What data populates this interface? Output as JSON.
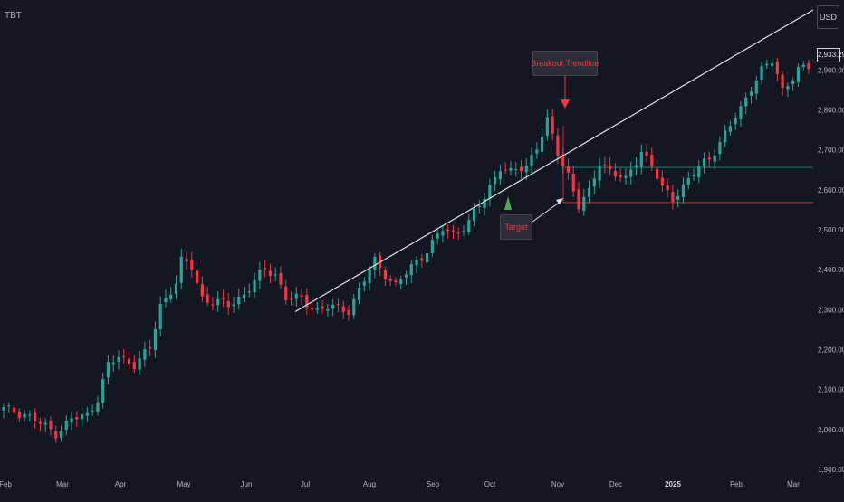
{
  "header": {
    "ticker": "TBT",
    "currency": "USD"
  },
  "last_price": "2,933.29",
  "annotations": {
    "breakout_label": "Breakout Trendline",
    "target_label": "Target"
  },
  "colors": {
    "background": "#131722",
    "up": "#26a69a",
    "down": "#f23645",
    "trendline": "#e0e3eb",
    "support": "#f23645",
    "resistance": "#26a69a"
  },
  "chart_data": {
    "type": "candlestick",
    "title": "",
    "xlabel": "",
    "ylabel": "",
    "ylim": [
      1875,
      3075
    ],
    "y_ticks": [
      "1,900.00",
      "2,000.00",
      "2,100.00",
      "2,200.00",
      "2,300.00",
      "2,400.00",
      "2,500.00",
      "2,600.00",
      "2,700.00",
      "2,800.00",
      "2,900.00"
    ],
    "x_ticks": [
      "Feb",
      "Mar",
      "Apr",
      "May",
      "Jun",
      "Jul",
      "Aug",
      "Sep",
      "Oct",
      "Nov",
      "Dec",
      "2025",
      "Feb",
      "Mar"
    ],
    "price_path": [
      [
        0,
        2050
      ],
      [
        4,
        2040
      ],
      [
        8,
        2005
      ],
      [
        10,
        1992
      ],
      [
        13,
        2025
      ],
      [
        16,
        2035
      ],
      [
        18,
        2080
      ],
      [
        20,
        2160
      ],
      [
        22,
        2180
      ],
      [
        25,
        2165
      ],
      [
        28,
        2200
      ],
      [
        30,
        2310
      ],
      [
        33,
        2370
      ],
      [
        34,
        2420
      ],
      [
        36,
        2405
      ],
      [
        38,
        2330
      ],
      [
        40,
        2320
      ],
      [
        43,
        2310
      ],
      [
        46,
        2340
      ],
      [
        50,
        2400
      ],
      [
        52,
        2390
      ],
      [
        54,
        2330
      ],
      [
        57,
        2325
      ],
      [
        60,
        2300
      ],
      [
        62,
        2305
      ],
      [
        66,
        2300
      ],
      [
        68,
        2350
      ],
      [
        71,
        2420
      ],
      [
        73,
        2390
      ],
      [
        75,
        2360
      ],
      [
        77,
        2390
      ],
      [
        79,
        2420
      ],
      [
        81,
        2450
      ],
      [
        84,
        2500
      ],
      [
        86,
        2490
      ],
      [
        89,
        2520
      ],
      [
        92,
        2580
      ],
      [
        95,
        2660
      ],
      [
        97,
        2640
      ],
      [
        100,
        2660
      ],
      [
        102,
        2710
      ],
      [
        104,
        2770
      ],
      [
        106,
        2690
      ],
      [
        108,
        2640
      ],
      [
        110,
        2560
      ],
      [
        112,
        2590
      ],
      [
        114,
        2670
      ],
      [
        117,
        2640
      ],
      [
        119,
        2620
      ],
      [
        122,
        2700
      ],
      [
        124,
        2660
      ],
      [
        126,
        2600
      ],
      [
        128,
        2580
      ],
      [
        130,
        2610
      ],
      [
        132,
        2640
      ],
      [
        135,
        2680
      ],
      [
        137,
        2720
      ],
      [
        139,
        2760
      ],
      [
        141,
        2800
      ],
      [
        143,
        2860
      ],
      [
        145,
        2900
      ],
      [
        147,
        2920
      ],
      [
        149,
        2850
      ],
      [
        150,
        2870
      ],
      [
        152,
        2900
      ],
      [
        154,
        2905
      ]
    ],
    "trendline": {
      "start": {
        "x": "Jun",
        "y": 2295
      },
      "end": {
        "x": "Mar",
        "y": 3050
      }
    },
    "support_level": 2568,
    "resistance_level": 2656,
    "breakout_candle": "Nov",
    "target": 2568
  }
}
